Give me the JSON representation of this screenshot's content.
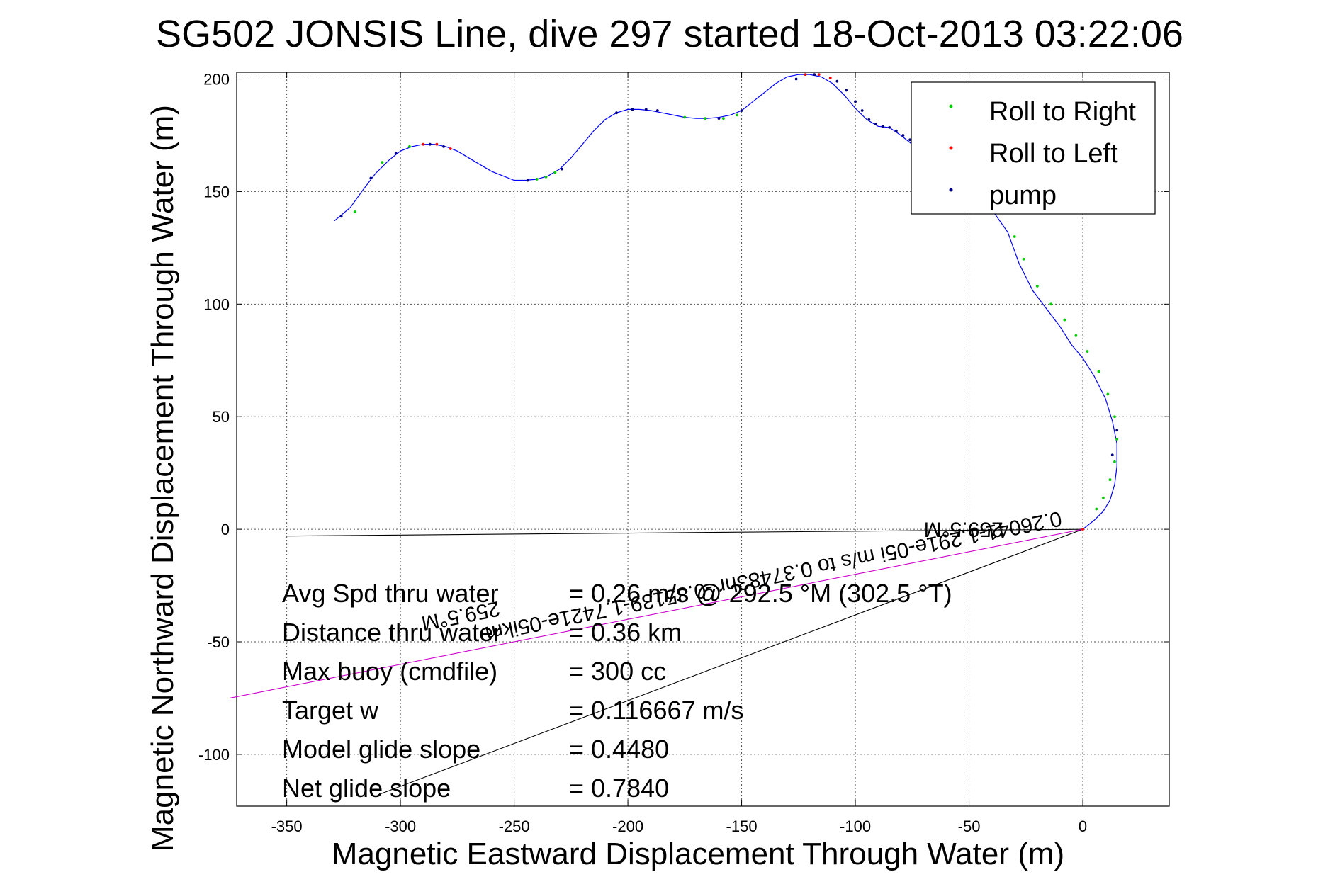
{
  "chart_data": {
    "type": "line",
    "title": "SG502 JONSIS Line, dive 297 started 18-Oct-2013 03:22:06",
    "xlabel": "Magnetic Eastward Displacement Through Water (m)",
    "ylabel": "Magnetic Northward Displacement Through Water (m)",
    "xlim": [
      -372,
      38
    ],
    "ylim": [
      -123,
      203
    ],
    "xticks": [
      -350,
      -300,
      -250,
      -200,
      -150,
      -100,
      -50,
      0
    ],
    "yticks": [
      -100,
      -50,
      0,
      50,
      100,
      150,
      200
    ],
    "grid": true,
    "legend_position": "top-right",
    "legend": [
      {
        "label": "Roll to Right",
        "color": "#00cc00",
        "marker": "dot"
      },
      {
        "label": "Roll to Left",
        "color": "#ff0000",
        "marker": "dot"
      },
      {
        "label": "pump",
        "color": "#000080",
        "marker": "dot"
      }
    ],
    "track": {
      "color": "#0000ff",
      "x": [
        -329,
        -322,
        -317,
        -311,
        -305,
        -300,
        -295,
        -290,
        -285,
        -280,
        -275,
        -270,
        -265,
        -260,
        -255,
        -250,
        -245,
        -240,
        -235,
        -230,
        -225,
        -220,
        -215,
        -210,
        -205,
        -200,
        -195,
        -190,
        -185,
        -180,
        -175,
        -170,
        -165,
        -160,
        -155,
        -150,
        -145,
        -140,
        -135,
        -130,
        -125,
        -120,
        -115,
        -110,
        -105,
        -100,
        -95,
        -90,
        -85,
        -80,
        -75,
        -70,
        -60,
        -50,
        -40,
        -33,
        -28,
        -22,
        -16,
        -10,
        -5,
        0,
        5,
        10,
        13,
        15,
        15,
        14,
        12,
        9,
        5,
        0
      ],
      "y": [
        137,
        143,
        150,
        158,
        164,
        168,
        170,
        171,
        171,
        170,
        168,
        165,
        162,
        159,
        157,
        155,
        155,
        155.5,
        157,
        160,
        165,
        171,
        177,
        182,
        185,
        186.5,
        186.5,
        186,
        185,
        184,
        183,
        182.5,
        182.5,
        183,
        184,
        186,
        190,
        194,
        198,
        201,
        202,
        202,
        201,
        198,
        193,
        187,
        182,
        179,
        178.5,
        175,
        171,
        168,
        162,
        153,
        142,
        132,
        118,
        106,
        98,
        90,
        82,
        76,
        68,
        58,
        48,
        38,
        28,
        20,
        13,
        8,
        4,
        0
      ]
    },
    "markers": {
      "roll_right": {
        "color": "#00cc00",
        "x": [
          -320,
          -308,
          -296,
          -240,
          -236,
          -232,
          -175,
          -166,
          -158,
          -152,
          -35,
          -30,
          -26,
          -20,
          -14,
          -8,
          -3,
          2,
          7,
          11,
          14,
          15,
          14,
          12,
          9,
          6
        ],
        "y": [
          141,
          163,
          170,
          155.5,
          156.5,
          158.5,
          183,
          182.5,
          182.5,
          184,
          145,
          130,
          120,
          108,
          100,
          93,
          86,
          79,
          70,
          60,
          50,
          40,
          30,
          22,
          14,
          9
        ]
      },
      "roll_left": {
        "color": "#ff0000",
        "x": [
          -290,
          -284,
          -278,
          -122,
          -116,
          -111,
          0
        ],
        "y": [
          171,
          171,
          169,
          202,
          202,
          200.5,
          0
        ]
      },
      "pump": {
        "color": "#000080",
        "x": [
          -326,
          -313,
          -302,
          -287,
          -281,
          -244,
          -229,
          -205,
          -198,
          -192,
          -187,
          -160,
          -150,
          -126,
          -118,
          -108,
          -104,
          -100,
          -97,
          -94,
          -91,
          -88,
          -85,
          -82,
          -79,
          -76,
          -72,
          -68,
          -64,
          -57,
          -52,
          -47,
          -42,
          15,
          13
        ],
        "y": [
          139,
          156,
          167,
          171,
          170,
          155,
          160,
          185,
          186.5,
          186.5,
          186,
          182.5,
          186,
          200,
          202,
          199,
          195,
          190,
          186,
          182,
          180,
          179,
          178.5,
          177,
          175,
          173,
          171,
          169,
          166,
          160,
          155,
          150,
          146,
          44,
          33
        ]
      }
    },
    "overlay_lines": [
      {
        "name": "heading-line",
        "color": "#000000",
        "x": [
          0,
          -350
        ],
        "y": [
          0,
          -3
        ]
      },
      {
        "name": "glide-line",
        "color": "#000000",
        "x": [
          0,
          -310
        ],
        "y": [
          0,
          -118
        ]
      },
      {
        "name": "current-line",
        "color": "#cc00cc",
        "x": [
          0,
          -375
        ],
        "y": [
          0,
          -75
        ]
      }
    ],
    "overlay_texts": [
      {
        "name": "rotated-label-current",
        "text": "0.26041-1.291e-05i m/s to 0.37483hr -0.85139-1.7421e-05ikm",
        "x": -10,
        "y": 8,
        "angle": 168.6
      },
      {
        "name": "rotated-label-heading-a",
        "text": "259.5°M",
        "x": -35,
        "y": 3,
        "angle": 180
      },
      {
        "name": "rotated-label-heading-b",
        "text": "259.5°M",
        "x": -257,
        "y": -32,
        "angle": 168.6
      }
    ],
    "annotations": [
      {
        "label": "Avg Spd thru water",
        "value": "=  0.26 m/s @ 292.5 °M (302.5 °T)"
      },
      {
        "label": "Distance thru water",
        "value": "=  0.36 km"
      },
      {
        "label": "Max buoy (cmdfile)",
        "value": "= 300 cc"
      },
      {
        "label": "Target w",
        "value": "= 0.116667 m/s"
      },
      {
        "label": "Model glide slope",
        "value": "= 0.4480"
      },
      {
        "label": "Net glide slope",
        "value": "= 0.7840"
      }
    ]
  }
}
